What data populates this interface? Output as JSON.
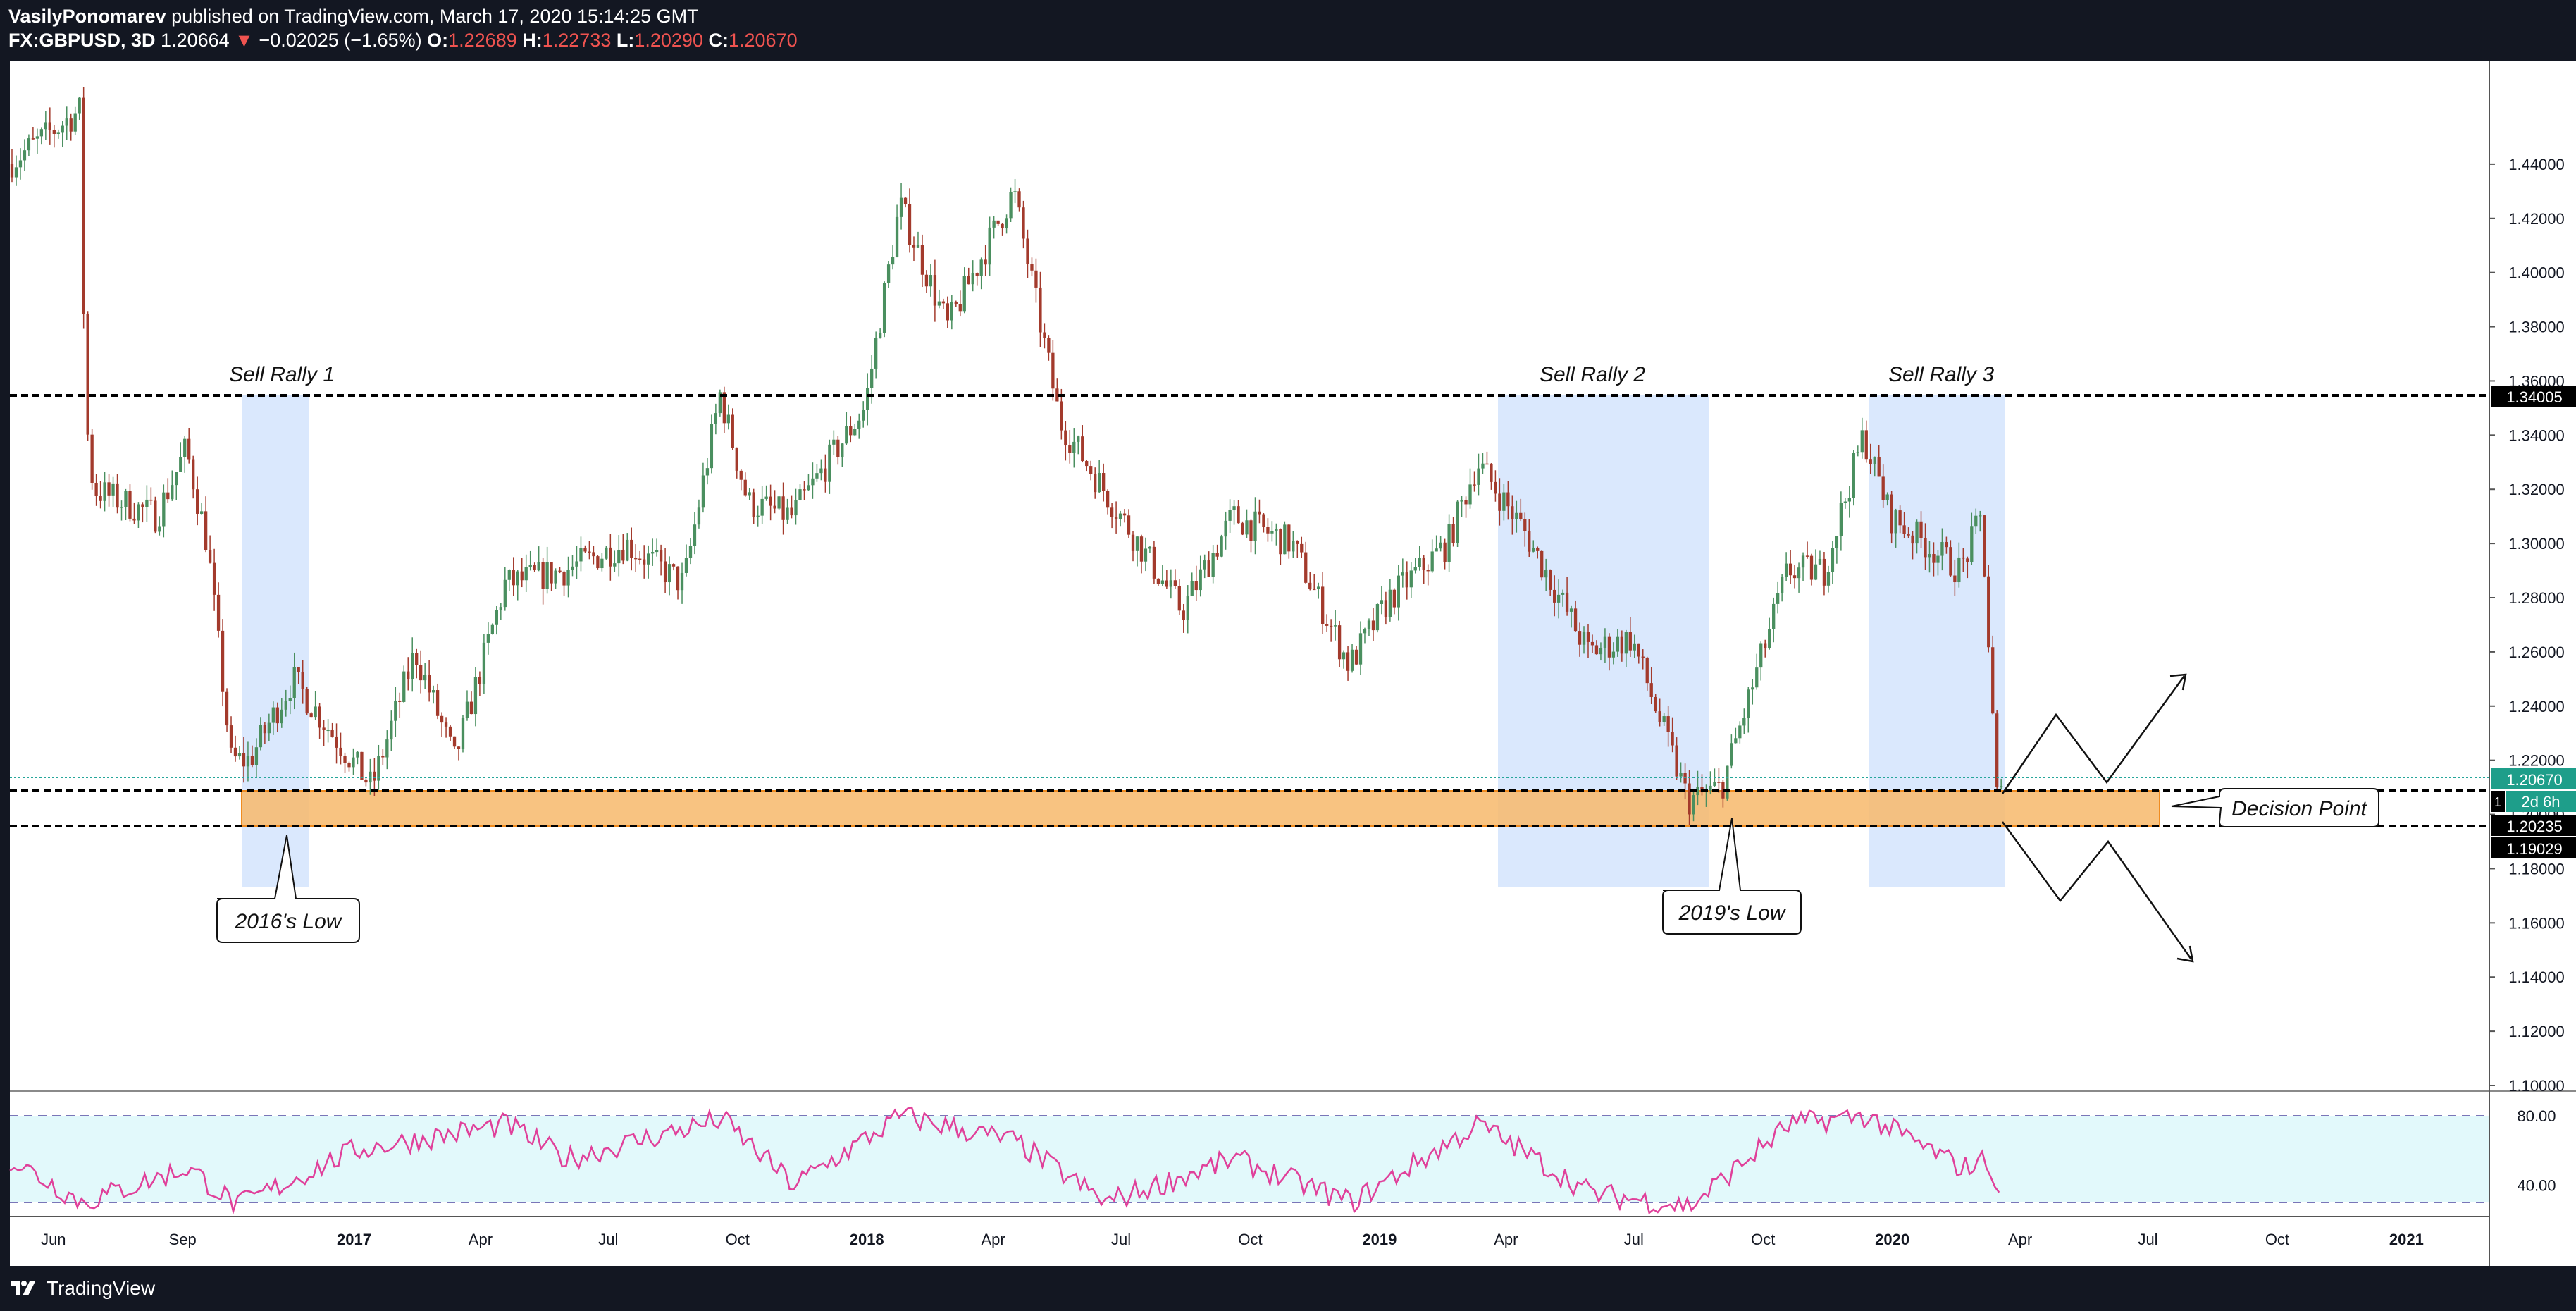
{
  "header": {
    "publisher": "VasilyPonomarev",
    "published_text": "published on TradingView.com, March 17, 2020 15:14:25 GMT",
    "symbol": "FX:GBPUSD, 3D",
    "last": "1.20664",
    "change_arrow": "▼",
    "change": "−0.02025 (−1.65%)",
    "o_label": "O:",
    "o_value": "1.22689",
    "h_label": "H:",
    "h_value": "1.22733",
    "l_label": "L:",
    "l_value": "1.20290",
    "c_label": "C:",
    "c_value": "1.20670"
  },
  "footer": {
    "brand": "TradingView",
    "logo_icon": "tradingview-logo-icon"
  },
  "colors": {
    "up": "#26a69a",
    "down": "#ef5350",
    "candle_up": "#4a8f5f",
    "candle_down": "#a33a2c",
    "zone": "#f7b96b",
    "zone_border": "#f08c20",
    "highlight": "#bbd6fb",
    "rsi_line": "#e0409a",
    "rsi_band": "#e2f9fb",
    "last_price_tag": "#1e9e8a"
  },
  "chart_data": [
    {
      "type": "candlestick",
      "symbol": "FX:GBPUSD",
      "timeframe": "3D",
      "ylim": [
        1.1,
        1.46
      ],
      "price_ticks": [
        "1.44000",
        "1.42000",
        "1.40000",
        "1.38000",
        "1.36000",
        "1.34000",
        "1.32000",
        "1.30000",
        "1.28000",
        "1.26000",
        "1.24000",
        "1.22000",
        "1.20000",
        "1.18000",
        "1.16000",
        "1.14000",
        "1.12000",
        "1.10000"
      ],
      "time_labels": [
        "Jun",
        "Sep",
        "2017",
        "Apr",
        "Jul",
        "Oct",
        "2018",
        "Apr",
        "Jul",
        "Oct",
        "2019",
        "Apr",
        "Jul",
        "Oct",
        "2020",
        "Apr",
        "Jul",
        "Oct",
        "2021"
      ],
      "bold_time_labels": [
        "2017",
        "2018",
        "2019",
        "2020",
        "2021"
      ],
      "price_path": [
        [
          "2016-05-01",
          1.44
        ],
        [
          "2016-06-22",
          1.46
        ],
        [
          "2016-06-25",
          1.35
        ],
        [
          "2016-07-01",
          1.32
        ],
        [
          "2016-08-15",
          1.31
        ],
        [
          "2016-09-05",
          1.335
        ],
        [
          "2016-09-20",
          1.3
        ],
        [
          "2016-10-07",
          1.22
        ],
        [
          "2016-10-20",
          1.22
        ],
        [
          "2016-11-20",
          1.25
        ],
        [
          "2017-01-15",
          1.21
        ],
        [
          "2017-02-15",
          1.26
        ],
        [
          "2017-03-15",
          1.22
        ],
        [
          "2017-04-20",
          1.285
        ],
        [
          "2017-06-01",
          1.29
        ],
        [
          "2017-07-15",
          1.3
        ],
        [
          "2017-08-25",
          1.285
        ],
        [
          "2017-09-20",
          1.355
        ],
        [
          "2017-10-10",
          1.315
        ],
        [
          "2017-11-10",
          1.31
        ],
        [
          "2018-01-01",
          1.35
        ],
        [
          "2018-01-26",
          1.425
        ],
        [
          "2018-03-01",
          1.38
        ],
        [
          "2018-04-17",
          1.43
        ],
        [
          "2018-05-20",
          1.345
        ],
        [
          "2018-06-20",
          1.32
        ],
        [
          "2018-08-15",
          1.275
        ],
        [
          "2018-09-20",
          1.31
        ],
        [
          "2018-11-01",
          1.3
        ],
        [
          "2018-12-12",
          1.255
        ],
        [
          "2019-01-10",
          1.28
        ],
        [
          "2019-02-20",
          1.3
        ],
        [
          "2019-03-13",
          1.33
        ],
        [
          "2019-04-15",
          1.305
        ],
        [
          "2019-05-31",
          1.26
        ],
        [
          "2019-07-01",
          1.265
        ],
        [
          "2019-08-10",
          1.205
        ],
        [
          "2019-09-03",
          1.21
        ],
        [
          "2019-10-20",
          1.29
        ],
        [
          "2019-11-15",
          1.29
        ],
        [
          "2019-12-13",
          1.34
        ],
        [
          "2020-01-01",
          1.31
        ],
        [
          "2020-02-20",
          1.29
        ],
        [
          "2020-03-06",
          1.31
        ],
        [
          "2020-03-17",
          1.2067
        ]
      ]
    },
    {
      "type": "line",
      "name": "RSI",
      "ylim": [
        20,
        100
      ],
      "ticks": [
        "80.00",
        "40.00"
      ],
      "band": [
        30,
        80
      ],
      "rsi_path": [
        [
          "2016-05-01",
          55
        ],
        [
          "2016-06-22",
          30
        ],
        [
          "2016-09-05",
          50
        ],
        [
          "2016-10-10",
          28
        ],
        [
          "2017-01-01",
          60
        ],
        [
          "2017-04-20",
          75
        ],
        [
          "2017-06-01",
          55
        ],
        [
          "2017-09-20",
          78
        ],
        [
          "2017-11-10",
          40
        ],
        [
          "2018-01-26",
          80
        ],
        [
          "2018-04-17",
          65
        ],
        [
          "2018-06-20",
          30
        ],
        [
          "2018-09-20",
          55
        ],
        [
          "2018-12-12",
          30
        ],
        [
          "2019-03-13",
          75
        ],
        [
          "2019-06-01",
          35
        ],
        [
          "2019-08-10",
          28
        ],
        [
          "2019-10-20",
          75
        ],
        [
          "2019-12-13",
          80
        ],
        [
          "2020-02-20",
          50
        ],
        [
          "2020-03-10",
          55
        ],
        [
          "2020-03-17",
          30
        ]
      ]
    }
  ],
  "annotations": {
    "resistance_price": "1.34005",
    "support_top_price": "1.20670",
    "support_bottom_price": "1.20235",
    "zone_lower_price": "1.19029",
    "countdown": "2d 6h",
    "ohlc_marker": "1",
    "labels": {
      "sell_rally_1": "Sell Rally 1",
      "sell_rally_2": "Sell Rally 2",
      "sell_rally_3": "Sell Rally 3",
      "low_2016": "2016's Low",
      "low_2019": "2019's Low",
      "decision_point": "Decision Point"
    }
  }
}
